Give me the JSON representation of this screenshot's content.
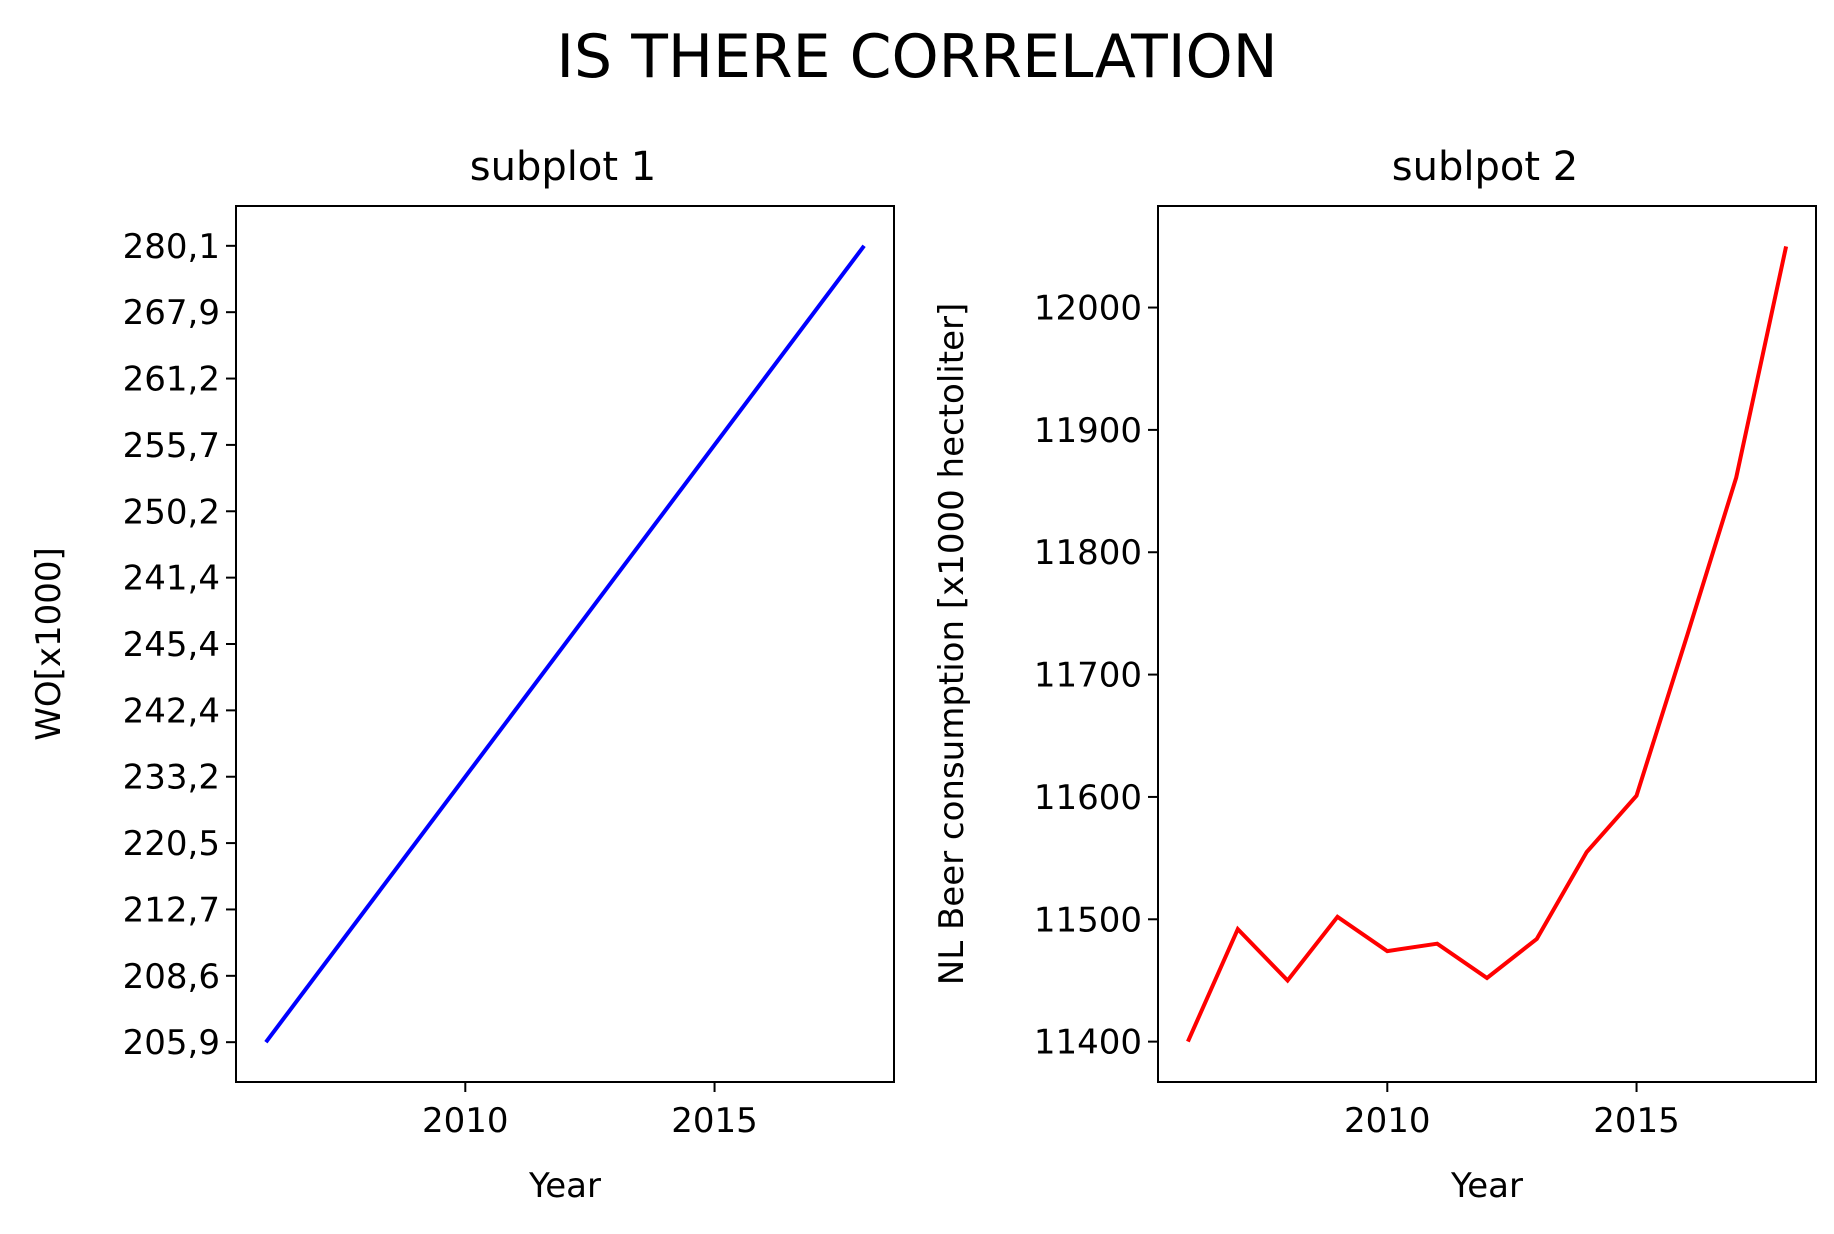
{
  "title": "IS THERE CORRELATION",
  "chart_data": [
    {
      "type": "line",
      "title": "subplot 1",
      "xlabel": "Year",
      "ylabel": "WO[x1000]",
      "x": [
        2006,
        2018
      ],
      "y_categories": [
        "205,9",
        "208,6",
        "212,7",
        "220,5",
        "233,2",
        "242,4",
        "245,4",
        "241,4",
        "250,2",
        "255,7",
        "261,2",
        "267,9",
        "280,1"
      ],
      "series": [
        {
          "color": "#0000ff",
          "values": [
            "205,9",
            "280,1"
          ]
        }
      ],
      "xlim": [
        2005.4,
        2018.6
      ],
      "ylim": [
        -0.6,
        12.6
      ],
      "xticks": [
        2010,
        2015
      ],
      "grid": false
    },
    {
      "type": "line",
      "title": "sublpot 2",
      "xlabel": "Year",
      "ylabel": "NL Beer consumption [x1000 hectoliter]",
      "x": [
        2006,
        2007,
        2008,
        2009,
        2010,
        2011,
        2012,
        2013,
        2014,
        2015,
        2016,
        2017,
        2018
      ],
      "series": [
        {
          "color": "#ff0000",
          "values": [
            11400,
            11492,
            11450,
            11502,
            11474,
            11480,
            11452,
            11484,
            11555,
            11601,
            11730,
            11861,
            12050
          ]
        }
      ],
      "xlim": [
        2005.4,
        2018.6
      ],
      "ylim": [
        11367,
        12083
      ],
      "xticks": [
        2010,
        2015
      ],
      "yticks": [
        11400,
        11500,
        11600,
        11700,
        11800,
        11900,
        12000
      ],
      "grid": false
    }
  ]
}
